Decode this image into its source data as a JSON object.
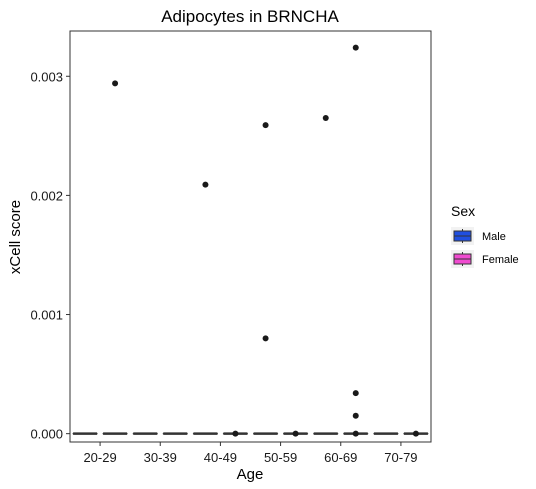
{
  "chart_data": {
    "type": "box",
    "title": "Adipocytes in BRNCHA",
    "xlabel": "Age",
    "ylabel": "xCell score",
    "categories": [
      "20-29",
      "30-39",
      "40-49",
      "50-59",
      "60-69",
      "70-79"
    ],
    "ylim": [
      -7e-05,
      0.00338
    ],
    "yticks": [
      0.0,
      0.001,
      0.002,
      0.003
    ],
    "ytick_labels": [
      "0.000",
      "0.001",
      "0.002",
      "0.003"
    ],
    "grid": false,
    "legend": {
      "title": "Sex",
      "position": "right"
    },
    "series": [
      {
        "name": "Male",
        "color": "#1f4fe0",
        "boxes": [
          {
            "category": "20-29",
            "median": 0,
            "q1": 0,
            "q3": 0
          },
          {
            "category": "30-39",
            "median": 0,
            "q1": 0,
            "q3": 0
          },
          {
            "category": "40-49",
            "median": 0,
            "q1": 0,
            "q3": 0
          },
          {
            "category": "50-59",
            "median": 0,
            "q1": 0,
            "q3": 0
          },
          {
            "category": "60-69",
            "median": 0,
            "q1": 0,
            "q3": 0
          },
          {
            "category": "70-79",
            "median": 0,
            "q1": 0,
            "q3": 0
          }
        ],
        "outliers": [
          {
            "category": "40-49",
            "value": 0.00209
          },
          {
            "category": "50-59",
            "value": 0.00259
          },
          {
            "category": "50-59",
            "value": 0.0008
          },
          {
            "category": "60-69",
            "value": 0.00265
          }
        ]
      },
      {
        "name": "Female",
        "color": "#f04bd0",
        "boxes": [
          {
            "category": "20-29",
            "median": 0,
            "q1": 0,
            "q3": 0
          },
          {
            "category": "30-39",
            "median": 0,
            "q1": 0,
            "q3": 0
          },
          {
            "category": "40-49",
            "median": 0,
            "q1": 0,
            "q3": 0
          },
          {
            "category": "50-59",
            "median": 0,
            "q1": 0,
            "q3": 0
          },
          {
            "category": "60-69",
            "median": 0,
            "q1": 0,
            "q3": 0
          },
          {
            "category": "70-79",
            "median": 0,
            "q1": 0,
            "q3": 0
          }
        ],
        "outliers": [
          {
            "category": "20-29",
            "value": 0.00294
          },
          {
            "category": "60-69",
            "value": 0.00324
          },
          {
            "category": "60-69",
            "value": 0.00034
          },
          {
            "category": "60-69",
            "value": 0.00015
          },
          {
            "category": "40-49",
            "value": 0.0
          },
          {
            "category": "50-59",
            "value": 0.0
          },
          {
            "category": "60-69",
            "value": 0.0
          },
          {
            "category": "70-79",
            "value": 0.0
          }
        ]
      }
    ]
  }
}
